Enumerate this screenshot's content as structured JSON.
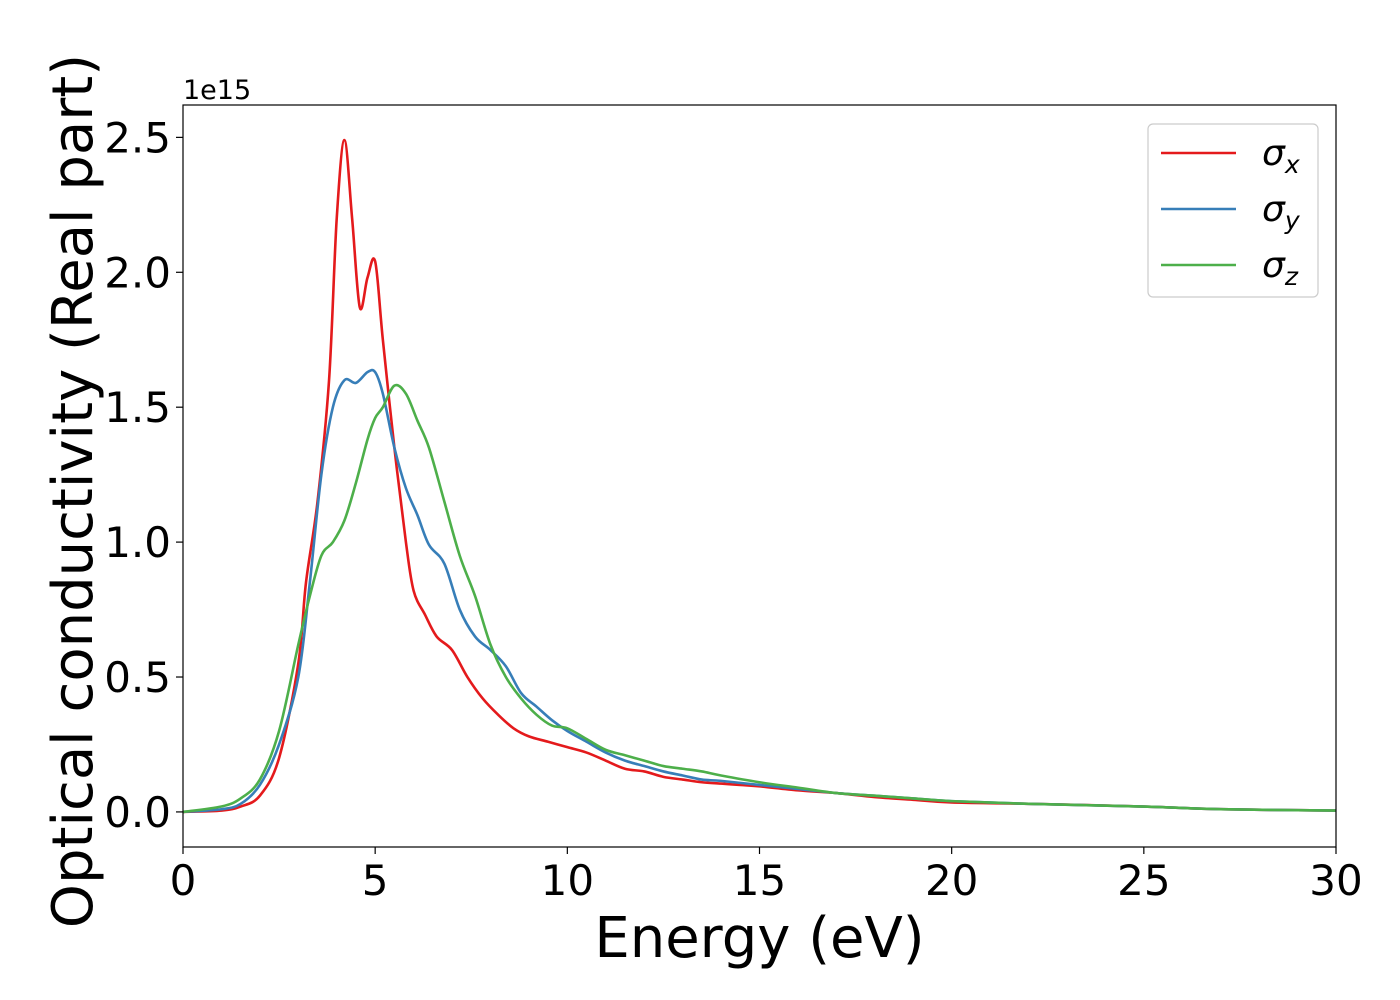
{
  "chart_data": {
    "type": "line",
    "title": "",
    "xlabel": "Energy (eV)",
    "ylabel": "Optical conductivity (Real part)",
    "y_offset_text": "1e15",
    "xlim": [
      0,
      30
    ],
    "ylim": [
      -0.13,
      2.62
    ],
    "y_unit_scale": 1000000000000000.0,
    "xticks": [
      0,
      5,
      10,
      15,
      20,
      25,
      30
    ],
    "xtick_labels": [
      "0",
      "5",
      "10",
      "15",
      "20",
      "25",
      "30"
    ],
    "yticks": [
      0.0,
      0.5,
      1.0,
      1.5,
      2.0,
      2.5
    ],
    "ytick_labels": [
      "0.0",
      "0.5",
      "1.0",
      "1.5",
      "2.0",
      "2.5"
    ],
    "grid": false,
    "legend_position": "top-right",
    "series": [
      {
        "name": "σ",
        "subscript": "x",
        "color": "#e41a1c",
        "x": [
          0,
          1,
          1.5,
          2,
          2.5,
          3,
          3.2,
          3.5,
          3.8,
          4.0,
          4.2,
          4.4,
          4.6,
          4.8,
          5.0,
          5.2,
          5.5,
          5.8,
          6.0,
          6.3,
          6.6,
          7.0,
          7.4,
          7.8,
          8.2,
          8.6,
          9.0,
          9.5,
          10,
          10.5,
          11,
          11.5,
          12,
          12.5,
          13,
          13.5,
          14,
          14.5,
          15,
          16,
          17,
          18,
          19,
          20,
          22,
          25,
          27,
          30
        ],
        "y": [
          0.0,
          0.005,
          0.02,
          0.06,
          0.2,
          0.55,
          0.85,
          1.15,
          1.6,
          2.2,
          2.49,
          2.2,
          1.87,
          1.98,
          2.04,
          1.75,
          1.35,
          1.0,
          0.82,
          0.73,
          0.65,
          0.6,
          0.5,
          0.42,
          0.36,
          0.31,
          0.28,
          0.26,
          0.24,
          0.22,
          0.19,
          0.16,
          0.15,
          0.13,
          0.12,
          0.11,
          0.105,
          0.1,
          0.095,
          0.08,
          0.07,
          0.055,
          0.045,
          0.035,
          0.03,
          0.02,
          0.01,
          0.005
        ]
      },
      {
        "name": "σ",
        "subscript": "y",
        "color": "#377eb8",
        "x": [
          0,
          1,
          1.5,
          2,
          2.5,
          3,
          3.3,
          3.6,
          3.9,
          4.2,
          4.5,
          4.8,
          5.0,
          5.2,
          5.5,
          5.8,
          6.1,
          6.4,
          6.8,
          7.2,
          7.6,
          8.0,
          8.4,
          8.8,
          9.2,
          9.6,
          10,
          10.5,
          11,
          11.5,
          12,
          12.5,
          13,
          13.5,
          14,
          15,
          16,
          17,
          18,
          19,
          20,
          22,
          25,
          27,
          30
        ],
        "y": [
          0.0,
          0.01,
          0.03,
          0.1,
          0.25,
          0.5,
          0.85,
          1.25,
          1.5,
          1.6,
          1.59,
          1.63,
          1.63,
          1.55,
          1.35,
          1.2,
          1.1,
          0.99,
          0.92,
          0.75,
          0.65,
          0.6,
          0.54,
          0.44,
          0.39,
          0.34,
          0.3,
          0.26,
          0.22,
          0.19,
          0.17,
          0.15,
          0.135,
          0.12,
          0.115,
          0.1,
          0.085,
          0.07,
          0.06,
          0.05,
          0.04,
          0.03,
          0.02,
          0.01,
          0.005
        ]
      },
      {
        "name": "σ",
        "subscript": "z",
        "color": "#4daf4a",
        "x": [
          0,
          1,
          1.5,
          2,
          2.5,
          3,
          3.3,
          3.6,
          3.9,
          4.2,
          4.5,
          4.8,
          5.0,
          5.2,
          5.5,
          5.8,
          6.1,
          6.4,
          6.8,
          7.2,
          7.6,
          8.0,
          8.4,
          8.8,
          9.2,
          9.6,
          10,
          10.5,
          11,
          11.5,
          12,
          12.5,
          13,
          13.5,
          14,
          15,
          16,
          17,
          18,
          19,
          20,
          22,
          25,
          27,
          30
        ],
        "y": [
          0.0,
          0.02,
          0.05,
          0.12,
          0.3,
          0.62,
          0.8,
          0.95,
          1.0,
          1.08,
          1.22,
          1.38,
          1.46,
          1.5,
          1.58,
          1.55,
          1.45,
          1.35,
          1.15,
          0.95,
          0.8,
          0.62,
          0.5,
          0.42,
          0.36,
          0.32,
          0.31,
          0.27,
          0.23,
          0.21,
          0.19,
          0.17,
          0.16,
          0.15,
          0.135,
          0.11,
          0.09,
          0.07,
          0.06,
          0.05,
          0.04,
          0.03,
          0.02,
          0.01,
          0.005
        ]
      }
    ]
  }
}
